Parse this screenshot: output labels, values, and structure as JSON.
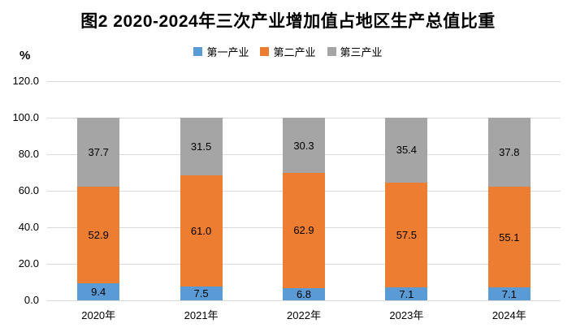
{
  "title": "图2  2020-2024年三次产业增加值占地区生产总值比重",
  "unit_label": "%",
  "colors": {
    "primary_industry": "#5B9BD5",
    "secondary_industry": "#ED7D31",
    "tertiary_industry": "#A5A5A5",
    "gridline": "#D9D9D9",
    "text": "#000000"
  },
  "chart_data": {
    "type": "bar",
    "stacked": true,
    "title": "图2  2020-2024年三次产业增加值占地区生产总值比重",
    "ylabel": "%",
    "xlabel": "",
    "categories": [
      "2020年",
      "2021年",
      "2022年",
      "2023年",
      "2024年"
    ],
    "series": [
      {
        "name": "第一产业",
        "color": "#5B9BD5",
        "values": [
          9.4,
          7.5,
          6.8,
          7.1,
          7.1
        ]
      },
      {
        "name": "第二产业",
        "color": "#ED7D31",
        "values": [
          52.9,
          61.0,
          62.9,
          57.5,
          55.1
        ]
      },
      {
        "name": "第三产业",
        "color": "#A5A5A5",
        "values": [
          37.7,
          31.5,
          30.3,
          35.4,
          37.8
        ]
      }
    ],
    "ylim": [
      0,
      120
    ],
    "yticks": [
      "0.0",
      "20.0",
      "40.0",
      "60.0",
      "80.0",
      "100.0",
      "120.0"
    ],
    "grid": true,
    "legend_position": "top",
    "data_labels": true
  }
}
